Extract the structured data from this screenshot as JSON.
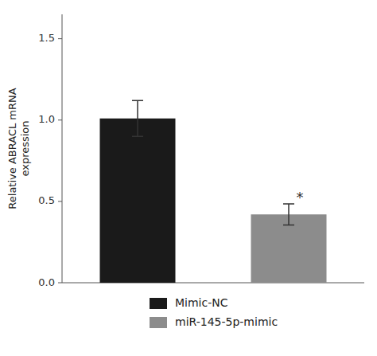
{
  "chart_data": {
    "type": "bar",
    "categories": [
      "Mimic-NC",
      "miR-145-5p-mimic"
    ],
    "values": [
      1.01,
      0.42
    ],
    "errors": [
      0.11,
      0.065
    ],
    "colors": [
      "#1a1a1a",
      "#8c8c8c"
    ],
    "ylabel": "Relative ABRACL mRNA\nexpression",
    "ylim": [
      0,
      1.65
    ],
    "yticks": [
      {
        "value": 0.0,
        "label": "0.0"
      },
      0.5,
      {
        "value": 1.0,
        "label": "1.0"
      },
      1.5
    ],
    "annotations": [
      {
        "text": "*",
        "category": "miR-145-5p-mimic"
      }
    ],
    "legend": "bottom",
    "tick_labels": "y",
    "grid": false
  }
}
